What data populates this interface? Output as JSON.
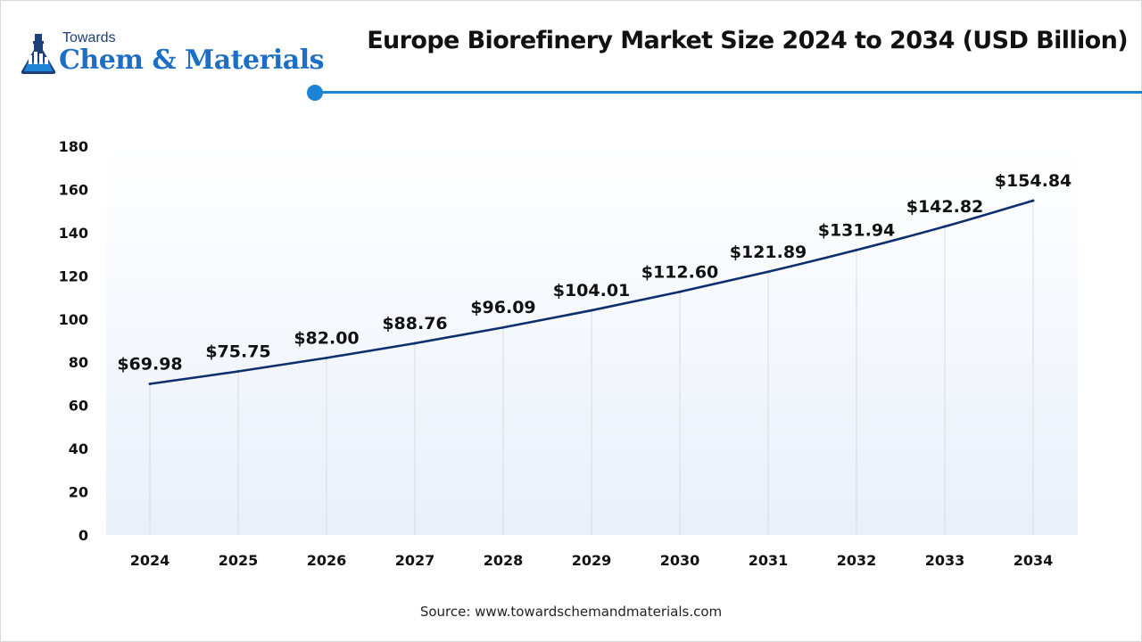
{
  "brand": {
    "top_text": "Towards",
    "main_text": "Chem & Materials",
    "primary_color": "#1c6fc4",
    "dark_color": "#1c3f7a",
    "icon": "flask-building-icon"
  },
  "accent_color": "#1c84d4",
  "line_color": "#0d2f6e",
  "source": "Source: www.towardschemandmaterials.com",
  "chart_data": {
    "type": "line",
    "title": "Europe Biorefinery Market Size 2024 to 2034 (USD Billion)",
    "xlabel": "",
    "ylabel": "",
    "categories": [
      "2024",
      "2025",
      "2026",
      "2027",
      "2028",
      "2029",
      "2030",
      "2031",
      "2032",
      "2033",
      "2034"
    ],
    "series": [
      {
        "values": [
          69.98,
          75.75,
          82.0,
          88.76,
          96.09,
          104.01,
          112.6,
          121.89,
          131.94,
          142.82,
          154.84
        ],
        "labels": [
          "$69.98",
          "$75.75",
          "$82.00",
          "$88.76",
          "$96.09",
          "$104.01",
          "$112.60",
          "$121.89",
          "$131.94",
          "$142.82",
          "$154.84"
        ]
      }
    ],
    "ylim": [
      0,
      180
    ],
    "yticks": [
      0,
      20,
      40,
      60,
      80,
      100,
      120,
      140,
      160,
      180
    ],
    "grid": "vertical",
    "legend": "none"
  }
}
